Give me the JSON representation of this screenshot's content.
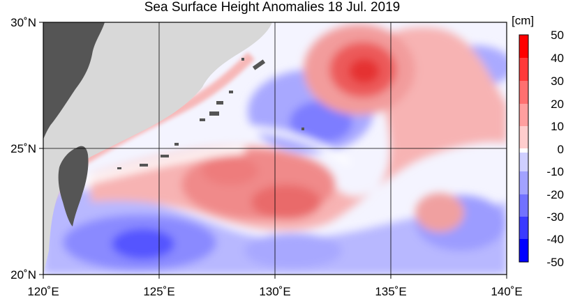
{
  "title": "Sea Surface Height Anomalies  18 Jul. 2019",
  "colorbar": {
    "unit": "[cm]",
    "ticks": [
      "50",
      "40",
      "30",
      "20",
      "10",
      "0",
      "-10",
      "-20",
      "-30",
      "-40",
      "-50"
    ],
    "colors_top_to_bottom": [
      "#ff0000",
      "#ff3a3a",
      "#ff7070",
      "#ff9f9f",
      "#ffcdcd",
      "#ffffff",
      "#cfcfff",
      "#a2a2ff",
      "#7272ff",
      "#3a3aff",
      "#0000ff"
    ]
  },
  "axes": {
    "x_ticks": [
      "120˚E",
      "125˚E",
      "130˚E",
      "135˚E",
      "140˚E"
    ],
    "y_ticks": [
      "30˚N",
      "25˚N",
      "20˚N"
    ],
    "lon_range": [
      120,
      140
    ],
    "lat_range": [
      20,
      30
    ]
  },
  "colors": {
    "land": "#555555",
    "no_data": "#d8d8d8",
    "grid": "#000000"
  }
}
